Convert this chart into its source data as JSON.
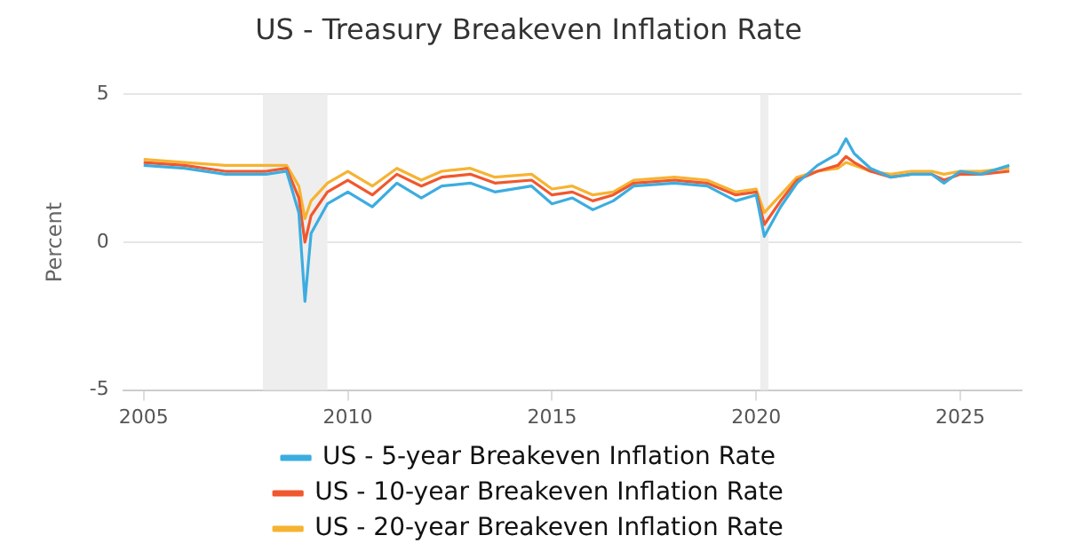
{
  "chart_data": {
    "type": "line",
    "title": "US - Treasury Breakeven Inflation Rate",
    "ylabel": "Percent",
    "xlim": [
      2004.5,
      2026.5
    ],
    "xticks": [
      2005,
      2010,
      2015,
      2020,
      2025
    ],
    "ylim": [
      -5,
      5
    ],
    "yticks": [
      -5,
      0,
      5
    ],
    "grid": "y",
    "legend": "bottom",
    "marker": "none",
    "bands": [
      {
        "axis": "x",
        "from": 2007.92,
        "to": 2009.5,
        "color": "#eeeeee"
      },
      {
        "axis": "x",
        "from": 2020.1,
        "to": 2020.3,
        "color": "#eeeeee"
      }
    ],
    "series": [
      {
        "name": "US - 5-year Breakeven Inflation Rate",
        "color": "#3cade0",
        "x": [
          2005,
          2006,
          2007,
          2008,
          2008.5,
          2008.8,
          2008.95,
          2009.1,
          2009.5,
          2010,
          2010.6,
          2011.2,
          2011.8,
          2012.3,
          2013,
          2013.6,
          2014.5,
          2015,
          2015.5,
          2016,
          2016.5,
          2017,
          2018,
          2018.8,
          2019.5,
          2020,
          2020.2,
          2020.6,
          2021,
          2021.5,
          2022,
          2022.2,
          2022.4,
          2022.8,
          2023.3,
          2023.8,
          2024.3,
          2024.6,
          2025,
          2025.5,
          2026.2
        ],
        "values": [
          2.6,
          2.5,
          2.3,
          2.3,
          2.4,
          1.0,
          -2.0,
          0.3,
          1.3,
          1.7,
          1.2,
          2.0,
          1.5,
          1.9,
          2.0,
          1.7,
          1.9,
          1.3,
          1.5,
          1.1,
          1.4,
          1.9,
          2.0,
          1.9,
          1.4,
          1.6,
          0.2,
          1.2,
          2.0,
          2.6,
          3.0,
          3.5,
          3.0,
          2.5,
          2.2,
          2.3,
          2.3,
          2.0,
          2.4,
          2.3,
          2.6
        ]
      },
      {
        "name": "US - 10-year Breakeven Inflation Rate",
        "color": "#f0582e",
        "x": [
          2005,
          2006,
          2007,
          2008,
          2008.5,
          2008.8,
          2008.95,
          2009.1,
          2009.5,
          2010,
          2010.6,
          2011.2,
          2011.8,
          2012.3,
          2013,
          2013.6,
          2014.5,
          2015,
          2015.5,
          2016,
          2016.5,
          2017,
          2018,
          2018.8,
          2019.5,
          2020,
          2020.2,
          2020.6,
          2021,
          2021.5,
          2022,
          2022.2,
          2022.4,
          2022.8,
          2023.3,
          2023.8,
          2024.3,
          2024.6,
          2025,
          2025.5,
          2026.2
        ],
        "values": [
          2.7,
          2.6,
          2.4,
          2.4,
          2.5,
          1.5,
          0.0,
          0.9,
          1.7,
          2.1,
          1.6,
          2.3,
          1.9,
          2.2,
          2.3,
          2.0,
          2.1,
          1.6,
          1.7,
          1.4,
          1.6,
          2.0,
          2.1,
          2.0,
          1.6,
          1.7,
          0.6,
          1.4,
          2.1,
          2.4,
          2.6,
          2.9,
          2.7,
          2.4,
          2.2,
          2.3,
          2.3,
          2.1,
          2.3,
          2.3,
          2.4
        ]
      },
      {
        "name": "US - 20-year Breakeven Inflation Rate",
        "color": "#f6b332",
        "x": [
          2005,
          2006,
          2007,
          2008,
          2008.5,
          2008.8,
          2008.95,
          2009.1,
          2009.5,
          2010,
          2010.6,
          2011.2,
          2011.8,
          2012.3,
          2013,
          2013.6,
          2014.5,
          2015,
          2015.5,
          2016,
          2016.5,
          2017,
          2018,
          2018.8,
          2019.5,
          2020,
          2020.2,
          2020.6,
          2021,
          2021.5,
          2022,
          2022.2,
          2022.4,
          2022.8,
          2023.3,
          2023.8,
          2024.3,
          2024.6,
          2025,
          2025.5,
          2026.2
        ],
        "values": [
          2.8,
          2.7,
          2.6,
          2.6,
          2.6,
          1.9,
          0.8,
          1.4,
          2.0,
          2.4,
          1.9,
          2.5,
          2.1,
          2.4,
          2.5,
          2.2,
          2.3,
          1.8,
          1.9,
          1.6,
          1.7,
          2.1,
          2.2,
          2.1,
          1.7,
          1.8,
          1.0,
          1.6,
          2.2,
          2.4,
          2.5,
          2.7,
          2.6,
          2.4,
          2.3,
          2.4,
          2.4,
          2.3,
          2.4,
          2.4,
          2.5
        ]
      }
    ]
  }
}
